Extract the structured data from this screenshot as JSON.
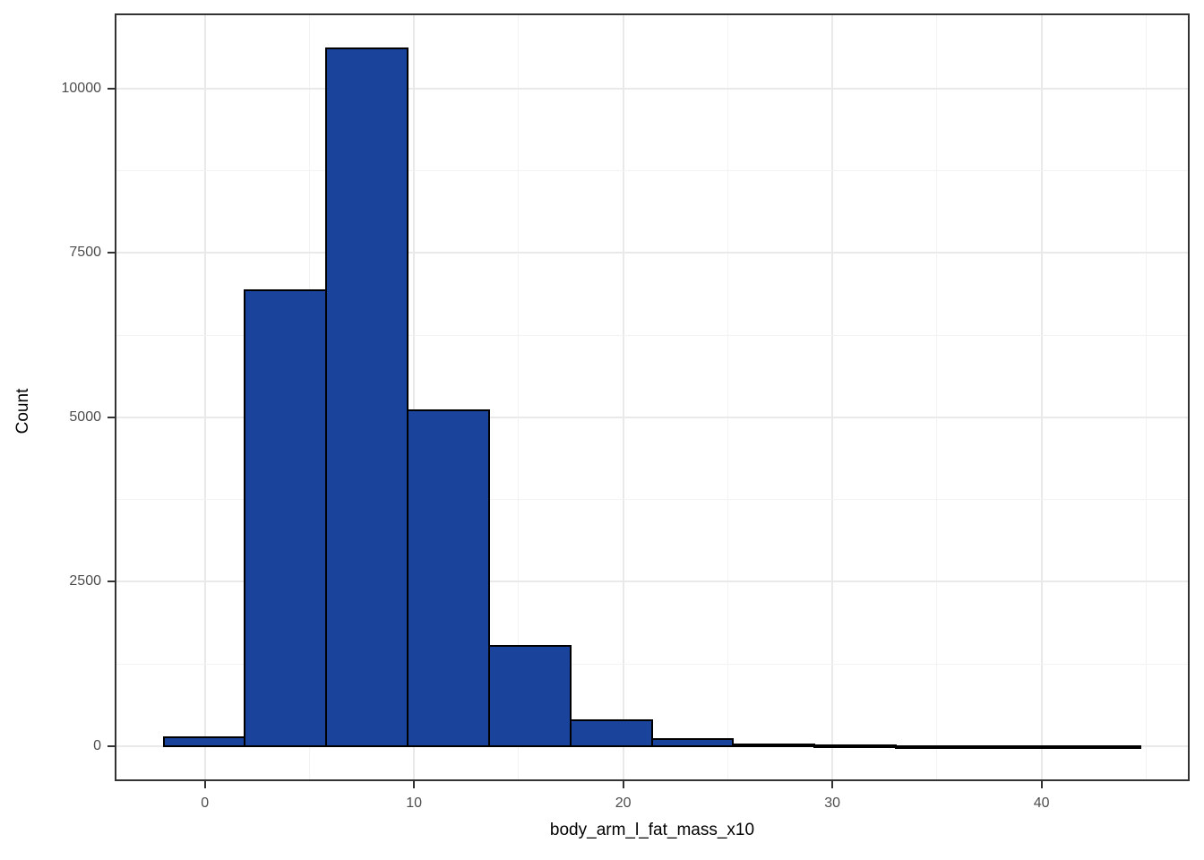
{
  "chart_data": {
    "type": "bar",
    "subtype": "histogram",
    "title": "",
    "xlabel": "body_arm_l_fat_mass_x10",
    "ylabel": "Count",
    "bin_start": -1.97,
    "bin_width": 3.89,
    "counts": [
      140,
      6930,
      10610,
      5110,
      1520,
      390,
      110,
      30,
      8,
      4,
      3,
      2
    ],
    "x_ticks_major": [
      0,
      10,
      20,
      30,
      40
    ],
    "x_ticks_minor": [
      5,
      15,
      25,
      35,
      45
    ],
    "y_ticks_major": [
      0,
      2500,
      5000,
      7500,
      10000
    ],
    "y_ticks_minor": [
      1250,
      3750,
      6250,
      8750
    ],
    "xlim": [
      -4.31,
      47.08
    ],
    "ylim": [
      -531,
      11142
    ],
    "grid": true,
    "legend_position": "none",
    "colors": {
      "bar_fill": "#1a449b",
      "bar_stroke": "#000000",
      "panel_border": "#333333",
      "grid_major": "#e9e9e9",
      "grid_minor": "#f3f3f3",
      "tick_text": "#4d4d4d",
      "title_text": "#000000",
      "background": "#ffffff"
    }
  }
}
